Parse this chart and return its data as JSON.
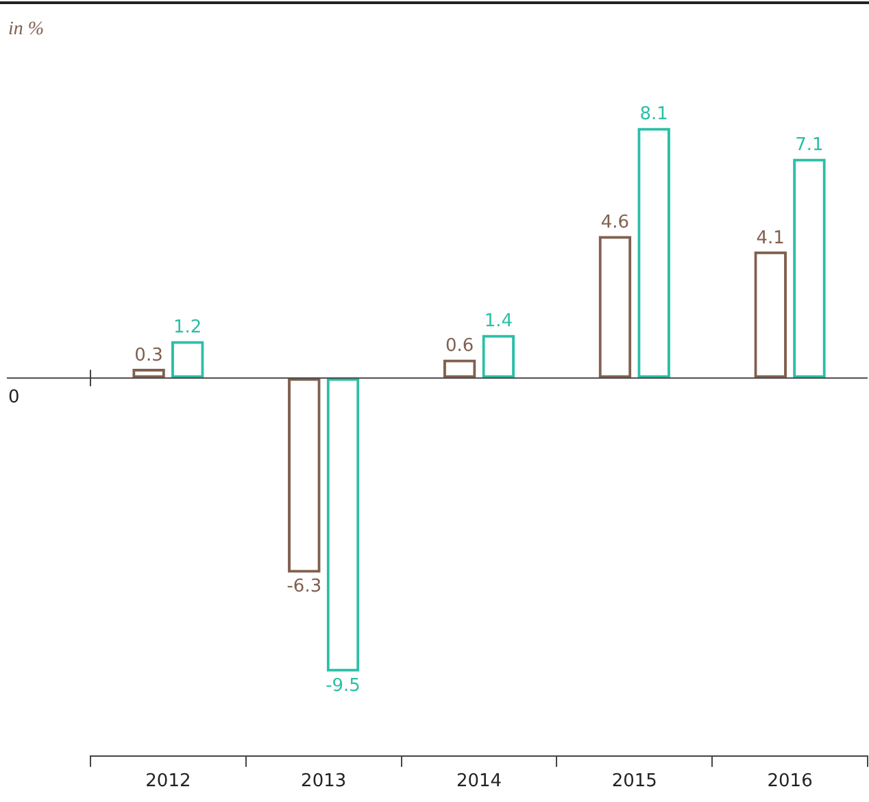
{
  "chart_data": {
    "type": "bar",
    "ylabel": "in %",
    "categories": [
      "2012",
      "2013",
      "2014",
      "2015",
      "2016"
    ],
    "series": [
      {
        "color": "#80604f",
        "values": [
          0.3,
          -6.3,
          0.6,
          4.6,
          4.1
        ]
      },
      {
        "color": "#2bbfa7",
        "values": [
          1.2,
          -9.5,
          1.4,
          8.1,
          7.1
        ]
      }
    ],
    "annotations": [
      "0"
    ],
    "data_labels": true,
    "legend": false
  }
}
